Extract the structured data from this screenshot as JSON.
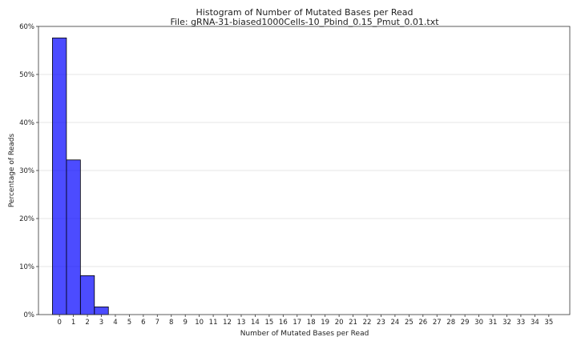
{
  "chart_data": {
    "type": "bar",
    "title": "Histogram of Number of Mutated Bases per Read",
    "subtitle": "File: gRNA-31-biased1000Cells-10_Pbind_0.15_Pmut_0.01.txt",
    "xlabel": "Number of Mutated Bases per Read",
    "ylabel": "Percentage of Reads",
    "categories": [
      "0",
      "1",
      "2",
      "3",
      "4",
      "5",
      "6",
      "7",
      "8",
      "9",
      "10",
      "11",
      "12",
      "13",
      "14",
      "15",
      "16",
      "17",
      "18",
      "19",
      "20",
      "21",
      "22",
      "23",
      "24",
      "25",
      "26",
      "27",
      "28",
      "29",
      "30",
      "31",
      "32",
      "33",
      "34",
      "35"
    ],
    "values": [
      57.6,
      32.2,
      8.1,
      1.6,
      0,
      0,
      0,
      0,
      0,
      0,
      0,
      0,
      0,
      0,
      0,
      0,
      0,
      0,
      0,
      0,
      0,
      0,
      0,
      0,
      0,
      0,
      0,
      0,
      0,
      0,
      0,
      0,
      0,
      0,
      0,
      0
    ],
    "xlim": [
      -1.0,
      37.0
    ],
    "ylim": [
      0,
      60
    ],
    "yticks": [
      0,
      10,
      20,
      30,
      40,
      50,
      60
    ],
    "ytick_labels": [
      "0%",
      "10%",
      "20%",
      "30%",
      "40%",
      "50%",
      "60%"
    ],
    "bar_color": "#0000ff",
    "bar_edge_color": "#000000",
    "grid": "horizontal"
  }
}
